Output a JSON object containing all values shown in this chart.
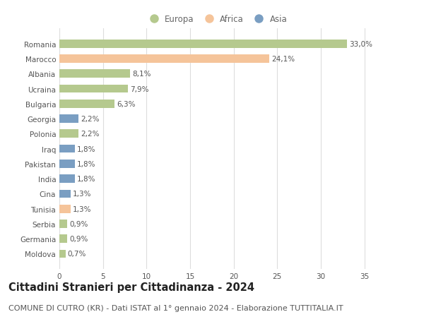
{
  "countries": [
    "Romania",
    "Marocco",
    "Albania",
    "Ucraina",
    "Bulgaria",
    "Georgia",
    "Polonia",
    "Iraq",
    "Pakistan",
    "India",
    "Cina",
    "Tunisia",
    "Serbia",
    "Germania",
    "Moldova"
  ],
  "values": [
    33.0,
    24.1,
    8.1,
    7.9,
    6.3,
    2.2,
    2.2,
    1.8,
    1.8,
    1.8,
    1.3,
    1.3,
    0.9,
    0.9,
    0.7
  ],
  "labels": [
    "33,0%",
    "24,1%",
    "8,1%",
    "7,9%",
    "6,3%",
    "2,2%",
    "2,2%",
    "1,8%",
    "1,8%",
    "1,8%",
    "1,3%",
    "1,3%",
    "0,9%",
    "0,9%",
    "0,7%"
  ],
  "continents": [
    "Europa",
    "Africa",
    "Europa",
    "Europa",
    "Europa",
    "Asia",
    "Europa",
    "Asia",
    "Asia",
    "Asia",
    "Asia",
    "Africa",
    "Europa",
    "Europa",
    "Europa"
  ],
  "colors": {
    "Europa": "#b5c98e",
    "Africa": "#f5c49a",
    "Asia": "#7a9ec2"
  },
  "legend_order": [
    "Europa",
    "Africa",
    "Asia"
  ],
  "xlim": [
    0,
    36
  ],
  "xticks": [
    0,
    5,
    10,
    15,
    20,
    25,
    30,
    35
  ],
  "title": "Cittadini Stranieri per Cittadinanza - 2024",
  "subtitle": "COMUNE DI CUTRO (KR) - Dati ISTAT al 1° gennaio 2024 - Elaborazione TUTTITALIA.IT",
  "background_color": "#ffffff",
  "grid_color": "#dddddd",
  "bar_height": 0.55,
  "title_fontsize": 10.5,
  "subtitle_fontsize": 8,
  "label_fontsize": 7.5,
  "tick_fontsize": 7.5,
  "legend_fontsize": 8.5
}
